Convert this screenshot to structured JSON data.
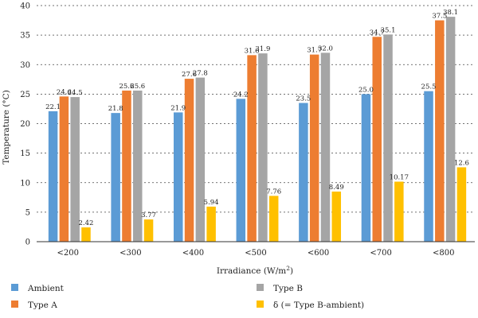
{
  "chart_data": {
    "type": "bar",
    "title": "",
    "xlabel": "Irradiance (W/m",
    "xlabel_sup": "2",
    "xlabel_suffix": ")",
    "ylabel": "Temperature (°C)",
    "ylim": [
      0,
      40
    ],
    "yticks": [
      "0",
      "5",
      "10",
      "15",
      "20",
      "25",
      "30",
      "35",
      "40"
    ],
    "grid": true,
    "legend_position": "bottom",
    "categories": [
      "<200",
      "<300",
      "<400",
      "<500",
      "<600",
      "<700",
      "<800"
    ],
    "series": [
      {
        "name": "Ambient",
        "color": "#5b9bd5",
        "values": [
          22.1,
          21.8,
          21.9,
          24.2,
          23.5,
          25.0,
          25.5
        ],
        "labels": [
          "22.1",
          "21.8",
          "21.9",
          "24.2",
          "23.5",
          "25.0",
          "25.5"
        ]
      },
      {
        "name": "Type A",
        "color": "#ed7d31",
        "values": [
          24.6,
          25.6,
          27.6,
          31.6,
          31.7,
          34.7,
          37.5
        ],
        "labels": [
          "24.6",
          "25.6",
          "27.6",
          "31.6",
          "31.7",
          "34.7",
          "37.5"
        ]
      },
      {
        "name": "Type B",
        "color": "#a5a5a5",
        "values": [
          24.5,
          25.6,
          27.8,
          31.9,
          32.0,
          35.1,
          38.1
        ],
        "labels": [
          "24.5",
          "25.6",
          "27.8",
          "31.9",
          "32.0",
          "35.1",
          "38.1"
        ]
      },
      {
        "name": "δ (= Type B-ambient)",
        "color": "#ffc000",
        "values": [
          2.42,
          3.77,
          5.94,
          7.76,
          8.49,
          10.17,
          12.6
        ],
        "labels": [
          "2.42",
          "3.77",
          "5.94",
          "7.76",
          "8.49",
          "10.17",
          "12.6"
        ]
      }
    ]
  }
}
